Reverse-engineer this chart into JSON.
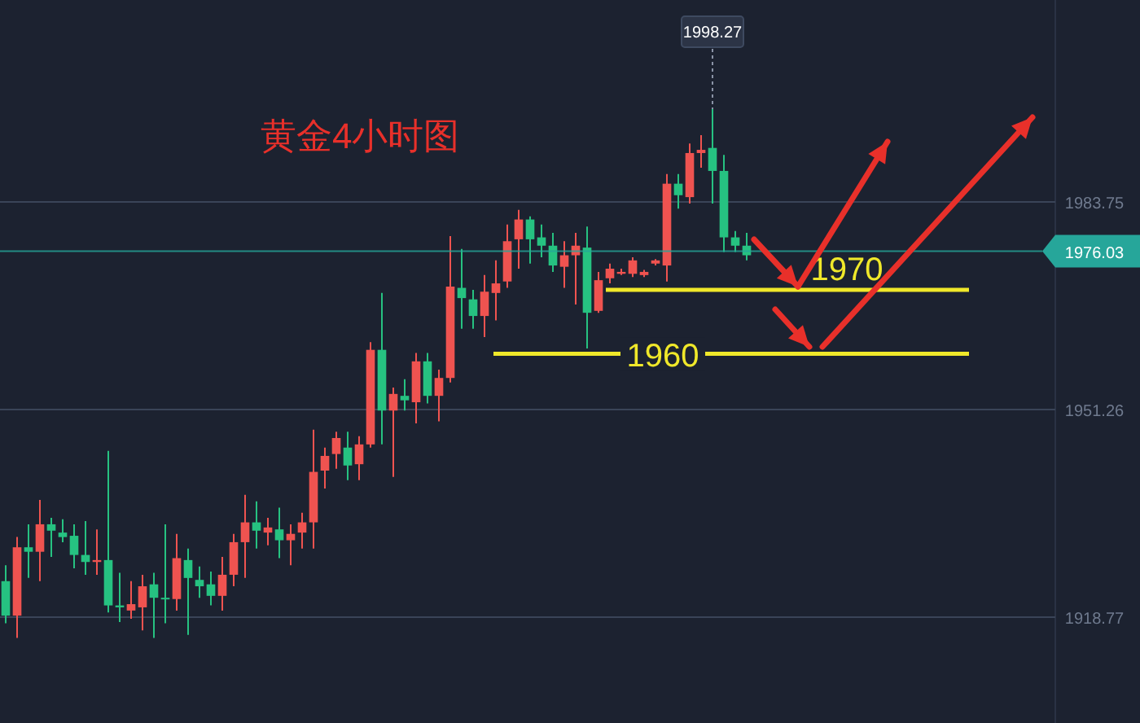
{
  "chart_data": {
    "type": "candlestick",
    "title": "黄金4小时图",
    "categories": [
      null,
      null,
      null,
      null,
      null,
      null,
      null,
      null,
      null,
      null,
      null,
      null,
      null,
      null,
      null,
      null,
      null,
      null,
      null,
      null,
      null,
      null,
      null,
      null,
      null,
      null,
      null,
      null,
      null,
      null,
      null,
      null,
      null,
      null,
      null,
      null,
      null,
      null,
      null,
      null,
      null,
      null,
      null,
      null,
      null,
      null,
      null,
      null,
      null,
      null,
      null,
      null,
      null,
      null,
      null,
      null,
      null,
      null,
      null,
      null,
      null,
      null,
      null,
      null,
      null,
      null,
      null,
      null,
      null,
      null,
      null,
      null,
      null,
      null,
      null,
      null,
      null,
      null,
      null,
      null,
      null,
      null,
      null,
      null,
      null,
      null,
      null,
      null,
      null,
      null,
      null,
      null,
      null,
      null,
      null,
      null,
      null,
      null,
      null,
      null
    ],
    "ohlc": [
      [
        1924.4,
        1926.9,
        1917.8,
        1919.0
      ],
      [
        1919.0,
        1931.3,
        1915.5,
        1929.7
      ],
      [
        1929.7,
        1933.3,
        1924.9,
        1929.0
      ],
      [
        1929.0,
        1937.1,
        1924.4,
        1933.3
      ],
      [
        1933.3,
        1934.3,
        1928.2,
        1932.3
      ],
      [
        1932.0,
        1934.1,
        1930.5,
        1931.3
      ],
      [
        1931.5,
        1933.3,
        1926.4,
        1928.5
      ],
      [
        1928.5,
        1933.8,
        1925.4,
        1927.4
      ],
      [
        1927.4,
        1932.5,
        1925.4,
        1927.7
      ],
      [
        1927.7,
        1944.8,
        1919.5,
        1920.6
      ],
      [
        1920.6,
        1925.7,
        1918.0,
        1920.3
      ],
      [
        1919.8,
        1924.4,
        1918.5,
        1920.8
      ],
      [
        1920.3,
        1925.4,
        1916.7,
        1923.6
      ],
      [
        1923.9,
        1925.7,
        1915.5,
        1921.8
      ],
      [
        1921.8,
        1933.3,
        1917.8,
        1921.6
      ],
      [
        1921.6,
        1931.8,
        1919.8,
        1928.0
      ],
      [
        1927.7,
        1929.5,
        1916.0,
        1924.9
      ],
      [
        1924.6,
        1926.7,
        1921.8,
        1923.6
      ],
      [
        1923.9,
        1925.9,
        1920.6,
        1922.1
      ],
      [
        1922.1,
        1928.2,
        1919.8,
        1925.4
      ],
      [
        1925.4,
        1931.8,
        1923.6,
        1930.5
      ],
      [
        1930.5,
        1937.9,
        1924.9,
        1933.6
      ],
      [
        1933.6,
        1936.9,
        1929.5,
        1932.3
      ],
      [
        1932.0,
        1934.3,
        1930.0,
        1932.8
      ],
      [
        1932.5,
        1935.9,
        1928.0,
        1930.8
      ],
      [
        1930.8,
        1933.3,
        1926.9,
        1931.8
      ],
      [
        1932.0,
        1935.1,
        1929.5,
        1933.6
      ],
      [
        1933.6,
        1948.1,
        1929.5,
        1941.5
      ],
      [
        1941.7,
        1945.3,
        1938.9,
        1944.0
      ],
      [
        1944.3,
        1947.8,
        1942.0,
        1946.8
      ],
      [
        1945.3,
        1947.8,
        1940.2,
        1942.5
      ],
      [
        1942.7,
        1947.1,
        1940.2,
        1945.8
      ],
      [
        1945.8,
        1961.8,
        1945.3,
        1960.6
      ],
      [
        1960.6,
        1969.5,
        1945.8,
        1951.1
      ],
      [
        1951.1,
        1954.7,
        1940.7,
        1953.7
      ],
      [
        1953.4,
        1956.0,
        1951.1,
        1952.7
      ],
      [
        1952.4,
        1960.1,
        1949.1,
        1958.8
      ],
      [
        1958.8,
        1960.1,
        1952.2,
        1953.4
      ],
      [
        1953.4,
        1957.5,
        1949.4,
        1956.2
      ],
      [
        1956.2,
        1978.4,
        1955.5,
        1970.5
      ],
      [
        1970.3,
        1976.4,
        1963.9,
        1968.7
      ],
      [
        1968.5,
        1970.0,
        1963.9,
        1965.9
      ],
      [
        1965.9,
        1972.3,
        1962.6,
        1969.7
      ],
      [
        1969.5,
        1974.6,
        1965.2,
        1971.0
      ],
      [
        1971.3,
        1980.2,
        1970.3,
        1977.6
      ],
      [
        1977.9,
        1982.5,
        1973.3,
        1981.0
      ],
      [
        1981.0,
        1981.5,
        1974.1,
        1977.9
      ],
      [
        1978.2,
        1980.2,
        1975.1,
        1976.9
      ],
      [
        1976.9,
        1978.9,
        1972.8,
        1973.8
      ],
      [
        1973.6,
        1977.6,
        1970.3,
        1975.4
      ],
      [
        1975.4,
        1978.9,
        1967.7,
        1976.9
      ],
      [
        1976.6,
        1979.9,
        1960.8,
        1966.4
      ],
      [
        1966.7,
        1972.8,
        1966.4,
        1971.5
      ],
      [
        1971.8,
        1974.1,
        1971.0,
        1973.3
      ],
      [
        1972.5,
        1973.3,
        1972.3,
        1972.8
      ],
      [
        1972.5,
        1975.1,
        1972.0,
        1974.6
      ],
      [
        1972.3,
        1973.1,
        1972.0,
        1972.8
      ],
      [
        1974.1,
        1974.8,
        1973.8,
        1974.6
      ],
      [
        1973.8,
        1988.1,
        1971.3,
        1986.6
      ],
      [
        1986.6,
        1988.1,
        1982.7,
        1984.8
      ],
      [
        1984.5,
        1992.9,
        1983.5,
        1991.4
      ],
      [
        1991.4,
        1994.2,
        1989.1,
        1991.9
      ],
      [
        1992.2,
        1998.27,
        1983.5,
        1988.6
      ],
      [
        1988.6,
        1991.1,
        1975.9,
        1978.2
      ],
      [
        1978.2,
        1979.2,
        1975.9,
        1976.9
      ],
      [
        1976.9,
        1978.9,
        1974.6,
        1975.4
      ],
      null,
      null,
      null,
      null,
      null,
      null,
      null,
      null,
      null,
      null,
      null,
      null,
      null,
      null,
      null,
      null,
      null,
      null,
      null,
      null,
      null,
      null,
      null,
      null,
      null,
      null,
      null,
      null,
      null,
      null,
      null,
      null,
      null,
      null
    ],
    "colors": [
      "#26c281",
      "#ef5350",
      "#26c281",
      "#ef5350",
      "#26c281",
      "#26c281",
      "#26c281",
      "#26c281",
      "#ef5350",
      "#26c281",
      "#26c281",
      "#ef5350",
      "#ef5350",
      "#26c281",
      "#26c281",
      "#ef5350",
      "#26c281",
      "#26c281",
      "#26c281",
      "#ef5350",
      "#ef5350",
      "#ef5350",
      "#26c281",
      "#ef5350",
      "#26c281",
      "#ef5350",
      "#ef5350",
      "#ef5350",
      "#ef5350",
      "#ef5350",
      "#26c281",
      "#ef5350",
      "#ef5350",
      "#26c281",
      "#ef5350",
      "#26c281",
      "#ef5350",
      "#26c281",
      "#ef5350",
      "#ef5350",
      "#26c281",
      "#26c281",
      "#ef5350",
      "#ef5350",
      "#ef5350",
      "#ef5350",
      "#26c281",
      "#26c281",
      "#26c281",
      "#ef5350",
      "#ef5350",
      "#26c281",
      "#ef5350",
      "#ef5350",
      "#ef5350",
      "#ef5350",
      "#ef5350",
      "#ef5350",
      "#ef5350",
      "#26c281",
      "#ef5350",
      "#ef5350",
      "#26c281",
      "#26c281",
      "#26c281",
      "#26c281",
      null,
      null,
      null,
      null,
      null,
      null,
      null,
      null,
      null,
      null,
      null,
      null,
      null,
      null,
      null,
      null,
      null,
      null,
      null,
      null,
      null,
      null,
      null,
      null,
      null,
      null,
      null,
      null,
      null,
      null,
      null,
      null,
      null,
      null
    ],
    "ylim": [
      1902.2,
      2015.35
    ],
    "yticks": [
      1918.77,
      1951.26,
      1983.75
    ],
    "grid": "y",
    "ref_lines": [
      {
        "axis": "y",
        "value": 1976.03,
        "label": "1976.03",
        "color": "#26a69a"
      },
      {
        "axis": "y",
        "value": 1970,
        "label": "1970",
        "color": "#f0e82a"
      },
      {
        "axis": "y",
        "value": 1960,
        "label": "1960",
        "color": "#f0e82a"
      }
    ],
    "annotations": [
      {
        "text": "1998.27",
        "y": 1998.27
      }
    ]
  }
}
